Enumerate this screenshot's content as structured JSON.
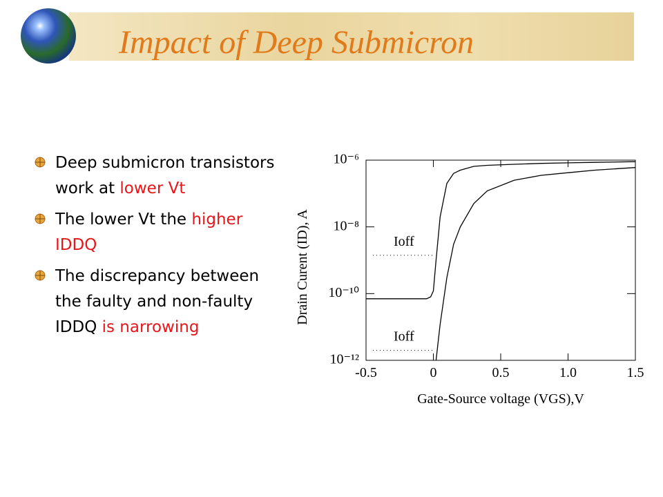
{
  "title": "Impact of Deep Submicron",
  "bullets": [
    {
      "text": "Deep submicron transistors work at ",
      "highlight": "lower Vt"
    },
    {
      "text": "The lower Vt the ",
      "highlight": "higher IDDQ"
    },
    {
      "text": "The discrepancy between the faulty and non-faulty IDDQ ",
      "highlight": "is narrowing"
    }
  ],
  "chart_data": {
    "type": "line",
    "log_y": true,
    "xlabel": "Gate-Source voltage (VGS),V",
    "ylabel": "Drain Curent (ID), A",
    "x": [
      -0.5,
      -0.3,
      -0.1,
      -0.05,
      -0.02,
      0,
      0.02,
      0.05,
      0.1,
      0.15,
      0.2,
      0.3,
      0.4,
      0.6,
      0.8,
      1.0,
      1.2,
      1.5
    ],
    "series": [
      {
        "color": "#000000",
        "values": [
          7e-11,
          7e-11,
          7e-11,
          7e-11,
          8e-11,
          1.2e-10,
          1e-09,
          2e-08,
          2e-07,
          4e-07,
          5e-07,
          6.5e-07,
          7e-07,
          7.5e-07,
          8e-07,
          8.3e-07,
          8.6e-07,
          9e-07
        ]
      },
      {
        "color": "#000000",
        "values": [
          null,
          null,
          null,
          null,
          null,
          null,
          1e-12,
          1.2e-11,
          3e-10,
          3e-09,
          1e-08,
          5e-08,
          1.2e-07,
          2.5e-07,
          3.5e-07,
          4.2e-07,
          5e-07,
          6e-07
        ]
      }
    ],
    "xlim": [
      -0.5,
      1.5
    ],
    "ylim": [
      1e-12,
      1e-06
    ],
    "xticks": [
      -0.5,
      0,
      0.5,
      {
        "value": 1,
        "label": "1.0"
      },
      1.5
    ],
    "yticks": [
      {
        "value": 1e-06,
        "label": "10⁻⁶"
      },
      {
        "value": 1e-08,
        "label": "10⁻⁸"
      },
      {
        "value": 1e-10,
        "label": "10⁻¹⁰"
      },
      {
        "value": 1e-12,
        "label": "10⁻¹²"
      }
    ],
    "reference_lines": [
      {
        "label": "Ioff",
        "value": 1.4e-09
      },
      {
        "label": "Ioff",
        "value": 2e-12
      }
    ]
  }
}
